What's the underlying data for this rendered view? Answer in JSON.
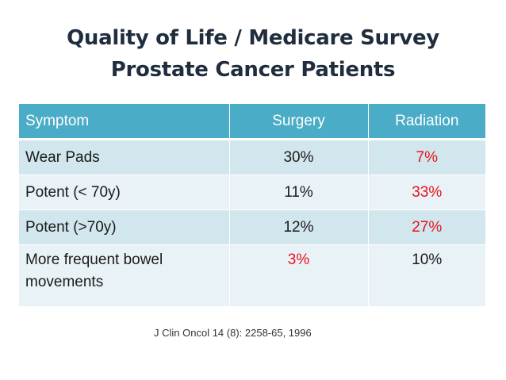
{
  "title": {
    "line1": "Quality of Life / Medicare Survey",
    "line2": "Prostate Cancer Patients"
  },
  "table": {
    "headers": [
      "Symptom",
      "Surgery",
      "Radiation"
    ],
    "rows": [
      {
        "symptom": "Wear Pads",
        "surgery": "30%",
        "radiation": "7%"
      },
      {
        "symptom": "Potent (< 70y)",
        "surgery": "11%",
        "radiation": "33%"
      },
      {
        "symptom": "Potent (>70y)",
        "surgery": "12%",
        "radiation": "27%"
      },
      {
        "symptom": "More frequent bowel movements",
        "surgery": "3%",
        "radiation": "10%"
      }
    ]
  },
  "citation": "J Clin Oncol 14 (8): 2258-65, 1996",
  "colors": {
    "header_bg": "#4aacc6",
    "row_dark": "#d2e6ee",
    "row_light": "#e9f2f6",
    "highlight": "#e8121e",
    "title_text": "#1f2d3d"
  }
}
